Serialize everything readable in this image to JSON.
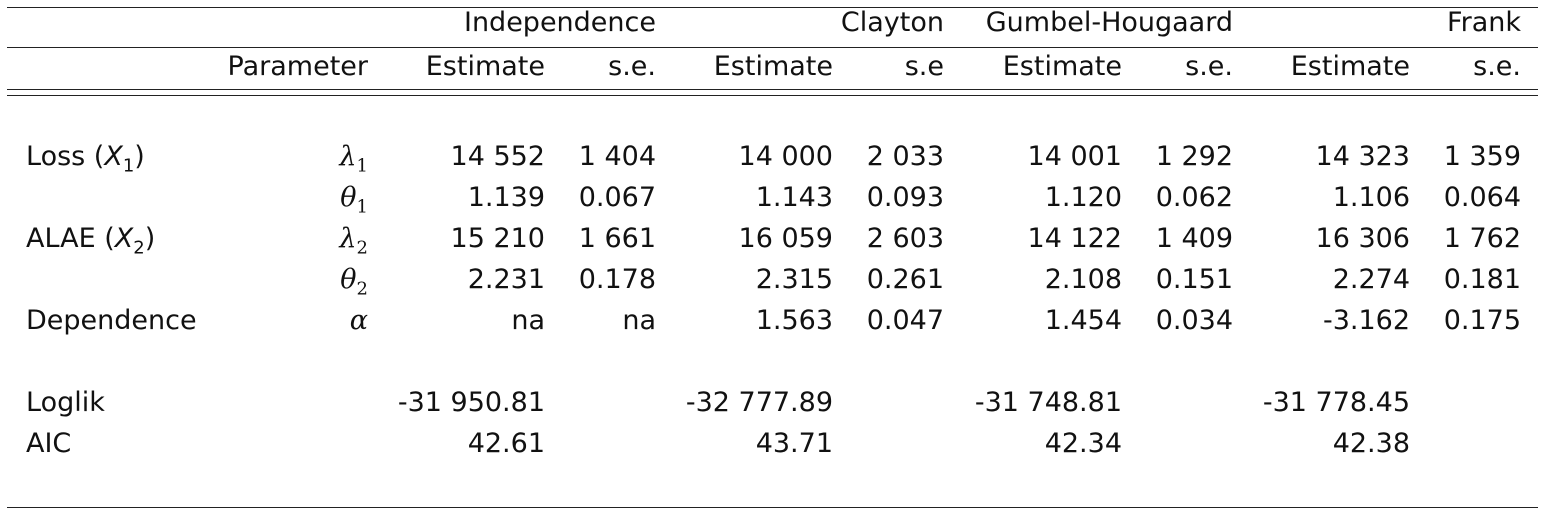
{
  "models": [
    "Independence",
    "Clayton",
    "Gumbel-Hougaard",
    "Frank"
  ],
  "subheaders": {
    "parameter": "Parameter",
    "estimate": "Estimate",
    "se": "s.e.",
    "se_clayton": "s.e"
  },
  "rows": [
    {
      "label": "Loss (",
      "var": "X",
      "sub": "1",
      "close": ")",
      "param": "λ",
      "param_sub": "1",
      "values": [
        "14 552",
        "1 404",
        "14 000",
        "2 033",
        "14 001",
        "1 292",
        "14 323",
        "1 359"
      ]
    },
    {
      "label": "",
      "var": "",
      "sub": "",
      "close": "",
      "param": "θ",
      "param_sub": "1",
      "values": [
        "1.139",
        "0.067",
        "1.143",
        "0.093",
        "1.120",
        "0.062",
        "1.106",
        "0.064"
      ]
    },
    {
      "label": "ALAE (",
      "var": "X",
      "sub": "2",
      "close": ")",
      "param": "λ",
      "param_sub": "2",
      "values": [
        "15 210",
        "1 661",
        "16 059",
        "2 603",
        "14 122",
        "1 409",
        "16 306",
        "1 762"
      ]
    },
    {
      "label": "",
      "var": "",
      "sub": "",
      "close": "",
      "param": "θ",
      "param_sub": "2",
      "values": [
        "2.231",
        "0.178",
        "2.315",
        "0.261",
        "2.108",
        "0.151",
        "2.274",
        "0.181"
      ]
    },
    {
      "label": "Dependence",
      "var": "",
      "sub": "",
      "close": "",
      "param": "α",
      "param_sub": "",
      "values": [
        "na",
        "na",
        "1.563",
        "0.047",
        "1.454",
        "0.034",
        "-3.162",
        "0.175"
      ]
    }
  ],
  "summary": [
    {
      "label": "Loglik",
      "values": [
        "-31 950.81",
        "-32 777.89",
        "-31 748.81",
        "-31 778.45"
      ]
    },
    {
      "label": "AIC",
      "values": [
        "42.61",
        "43.71",
        "42.34",
        "42.38"
      ]
    }
  ]
}
